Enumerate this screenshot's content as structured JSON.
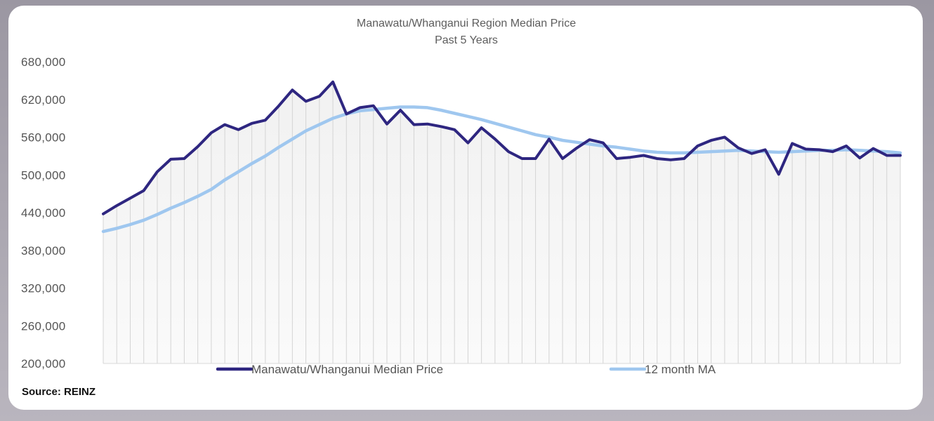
{
  "chart_data": {
    "type": "line",
    "title": "Manawatu/Whanganui Region Median Price",
    "subtitle": "Past 5 Years",
    "xlabel": "",
    "ylabel": "",
    "ylim": [
      200000,
      680000
    ],
    "yticks": [
      "200,000",
      "260,000",
      "320,000",
      "380,000",
      "440,000",
      "500,000",
      "560,000",
      "620,000",
      "680,000"
    ],
    "grid": "vertical",
    "legend": "bottom",
    "source": "Source: REINZ",
    "series": [
      {
        "name": "Manawatu/Whanganui Median Price",
        "color": "#2e2680",
        "values": [
          438000,
          451000,
          463000,
          475000,
          505000,
          525000,
          526000,
          545000,
          567000,
          580000,
          572000,
          582000,
          587000,
          610000,
          635000,
          617000,
          625000,
          648000,
          597000,
          607000,
          610000,
          581000,
          603000,
          580000,
          581000,
          577000,
          572000,
          551000,
          575000,
          557000,
          537000,
          526000,
          526000,
          557000,
          526000,
          542000,
          556000,
          551000,
          526000,
          528000,
          531000,
          526000,
          524000,
          526000,
          546000,
          555000,
          560000,
          543000,
          534000,
          540000,
          501000,
          550000,
          541000,
          540000,
          537000,
          546000,
          527000,
          542000,
          531000,
          531000
        ]
      },
      {
        "name": "12 month MA",
        "color": "#9fc7ef",
        "values": [
          410000,
          415000,
          421000,
          428000,
          437000,
          447000,
          456000,
          466000,
          477000,
          492000,
          505000,
          518000,
          530000,
          544000,
          557000,
          570000,
          580000,
          590000,
          597000,
          602000,
          604000,
          606000,
          608000,
          608000,
          607000,
          603000,
          598000,
          593000,
          588000,
          582000,
          576000,
          570000,
          564000,
          560000,
          555000,
          552000,
          549000,
          546000,
          544000,
          541000,
          538000,
          536000,
          535000,
          535000,
          536000,
          537000,
          538000,
          539000,
          538000,
          537000,
          536000,
          537000,
          538000,
          539000,
          539000,
          540000,
          539000,
          538000,
          537000,
          535000
        ]
      }
    ]
  }
}
